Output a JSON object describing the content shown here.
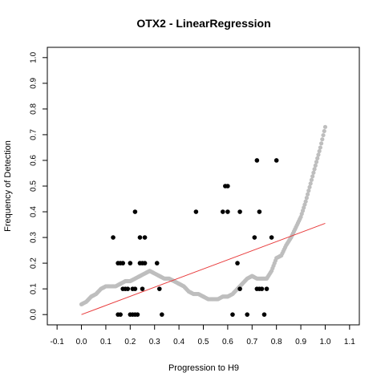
{
  "chart_data": {
    "type": "scatter",
    "title": "OTX2 - LinearRegression",
    "xlabel": "Progression to H9",
    "ylabel": "Frequency of Detection",
    "xlim": [
      -0.14,
      1.14
    ],
    "ylim": [
      -0.04,
      1.04
    ],
    "x_ticks": [
      "-0.1",
      "0.0",
      "0.1",
      "0.2",
      "0.3",
      "0.4",
      "0.5",
      "0.6",
      "0.7",
      "0.8",
      "0.9",
      "1.0",
      "1.1"
    ],
    "y_ticks": [
      "0.0",
      "0.1",
      "0.2",
      "0.3",
      "0.4",
      "0.5",
      "0.6",
      "0.7",
      "0.8",
      "0.9",
      "1.0"
    ],
    "grid": false,
    "series": [
      {
        "kind": "points",
        "color": "#000000",
        "points": [
          [
            0.13,
            0.3
          ],
          [
            0.15,
            0.2
          ],
          [
            0.16,
            0.2
          ],
          [
            0.17,
            0.2
          ],
          [
            0.17,
            0.1
          ],
          [
            0.18,
            0.1
          ],
          [
            0.19,
            0.1
          ],
          [
            0.15,
            0.0
          ],
          [
            0.16,
            0.0
          ],
          [
            0.2,
            0.0
          ],
          [
            0.21,
            0.0
          ],
          [
            0.22,
            0.0
          ],
          [
            0.23,
            0.0
          ],
          [
            0.2,
            0.2
          ],
          [
            0.21,
            0.1
          ],
          [
            0.22,
            0.1
          ],
          [
            0.22,
            0.4
          ],
          [
            0.24,
            0.3
          ],
          [
            0.24,
            0.2
          ],
          [
            0.25,
            0.2
          ],
          [
            0.26,
            0.2
          ],
          [
            0.25,
            0.1
          ],
          [
            0.26,
            0.3
          ],
          [
            0.31,
            0.2
          ],
          [
            0.32,
            0.1
          ],
          [
            0.33,
            0.0
          ],
          [
            0.47,
            0.4
          ],
          [
            0.58,
            0.4
          ],
          [
            0.59,
            0.5
          ],
          [
            0.6,
            0.5
          ],
          [
            0.6,
            0.4
          ],
          [
            0.62,
            0.0
          ],
          [
            0.64,
            0.2
          ],
          [
            0.65,
            0.1
          ],
          [
            0.65,
            0.4
          ],
          [
            0.68,
            0.0
          ],
          [
            0.71,
            0.3
          ],
          [
            0.72,
            0.6
          ],
          [
            0.72,
            0.1
          ],
          [
            0.73,
            0.4
          ],
          [
            0.73,
            0.1
          ],
          [
            0.74,
            0.1
          ],
          [
            0.75,
            0.0
          ],
          [
            0.76,
            0.1
          ],
          [
            0.78,
            0.3
          ],
          [
            0.8,
            0.6
          ]
        ]
      },
      {
        "kind": "smooth",
        "color": "#bebebe",
        "points": [
          [
            0.0,
            0.04
          ],
          [
            0.02,
            0.05
          ],
          [
            0.04,
            0.07
          ],
          [
            0.06,
            0.08
          ],
          [
            0.08,
            0.1
          ],
          [
            0.1,
            0.11
          ],
          [
            0.12,
            0.11
          ],
          [
            0.14,
            0.11
          ],
          [
            0.16,
            0.12
          ],
          [
            0.18,
            0.13
          ],
          [
            0.2,
            0.13
          ],
          [
            0.22,
            0.14
          ],
          [
            0.24,
            0.15
          ],
          [
            0.26,
            0.16
          ],
          [
            0.28,
            0.17
          ],
          [
            0.3,
            0.16
          ],
          [
            0.32,
            0.15
          ],
          [
            0.34,
            0.14
          ],
          [
            0.36,
            0.14
          ],
          [
            0.38,
            0.13
          ],
          [
            0.4,
            0.12
          ],
          [
            0.42,
            0.11
          ],
          [
            0.44,
            0.09
          ],
          [
            0.46,
            0.08
          ],
          [
            0.48,
            0.08
          ],
          [
            0.5,
            0.07
          ],
          [
            0.52,
            0.06
          ],
          [
            0.54,
            0.06
          ],
          [
            0.56,
            0.06
          ],
          [
            0.58,
            0.07
          ],
          [
            0.6,
            0.07
          ],
          [
            0.62,
            0.08
          ],
          [
            0.64,
            0.1
          ],
          [
            0.66,
            0.12
          ],
          [
            0.68,
            0.14
          ],
          [
            0.7,
            0.15
          ],
          [
            0.72,
            0.14
          ],
          [
            0.74,
            0.14
          ],
          [
            0.76,
            0.14
          ],
          [
            0.78,
            0.17
          ],
          [
            0.8,
            0.22
          ],
          [
            0.82,
            0.23
          ],
          [
            0.84,
            0.27
          ],
          [
            0.86,
            0.3
          ],
          [
            0.88,
            0.34
          ],
          [
            0.9,
            0.38
          ],
          [
            0.92,
            0.44
          ],
          [
            0.94,
            0.51
          ],
          [
            0.96,
            0.58
          ],
          [
            0.98,
            0.65
          ],
          [
            1.0,
            0.73
          ]
        ]
      },
      {
        "kind": "regression",
        "color": "#e8393a",
        "points": [
          [
            0.0,
            0.0
          ],
          [
            1.0,
            0.355
          ]
        ]
      }
    ]
  }
}
